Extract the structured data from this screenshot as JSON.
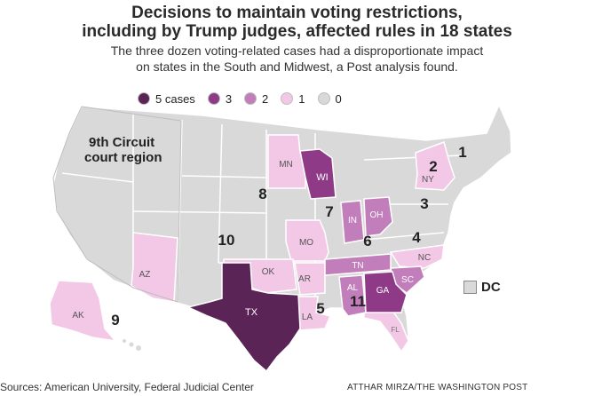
{
  "title_line1": "Decisions to maintain voting restrictions,",
  "title_line2": "including by Trump judges, affected rules in 18 states",
  "subtitle_line1": "The three dozen voting-related cases had a disproportionate impact",
  "subtitle_line2": "on states in the South and Midwest, a Post analysis found.",
  "legend": [
    {
      "label": "5 cases",
      "color": "#5b2457"
    },
    {
      "label": "3",
      "color": "#8e3a86"
    },
    {
      "label": "2",
      "color": "#c27dbb"
    },
    {
      "label": "1",
      "color": "#f3c8e7"
    },
    {
      "label": "0",
      "color": "#d9d9d9"
    }
  ],
  "annotation_9th": [
    "9th Circuit",
    "court region"
  ],
  "circuits": [
    "1",
    "2",
    "3",
    "4",
    "5",
    "6",
    "7",
    "8",
    "9",
    "10",
    "11"
  ],
  "states": [
    "WI",
    "MN",
    "NY",
    "IN",
    "OH",
    "MO",
    "OK",
    "AR",
    "TN",
    "NC",
    "SC",
    "AL",
    "GA",
    "LA",
    "TX",
    "AZ",
    "AK",
    "FL"
  ],
  "dc_label": "DC",
  "source": "Sources: American University, Federal Judicial Center",
  "credit": "ATTHAR MIRZA/THE WASHINGTON POST"
}
